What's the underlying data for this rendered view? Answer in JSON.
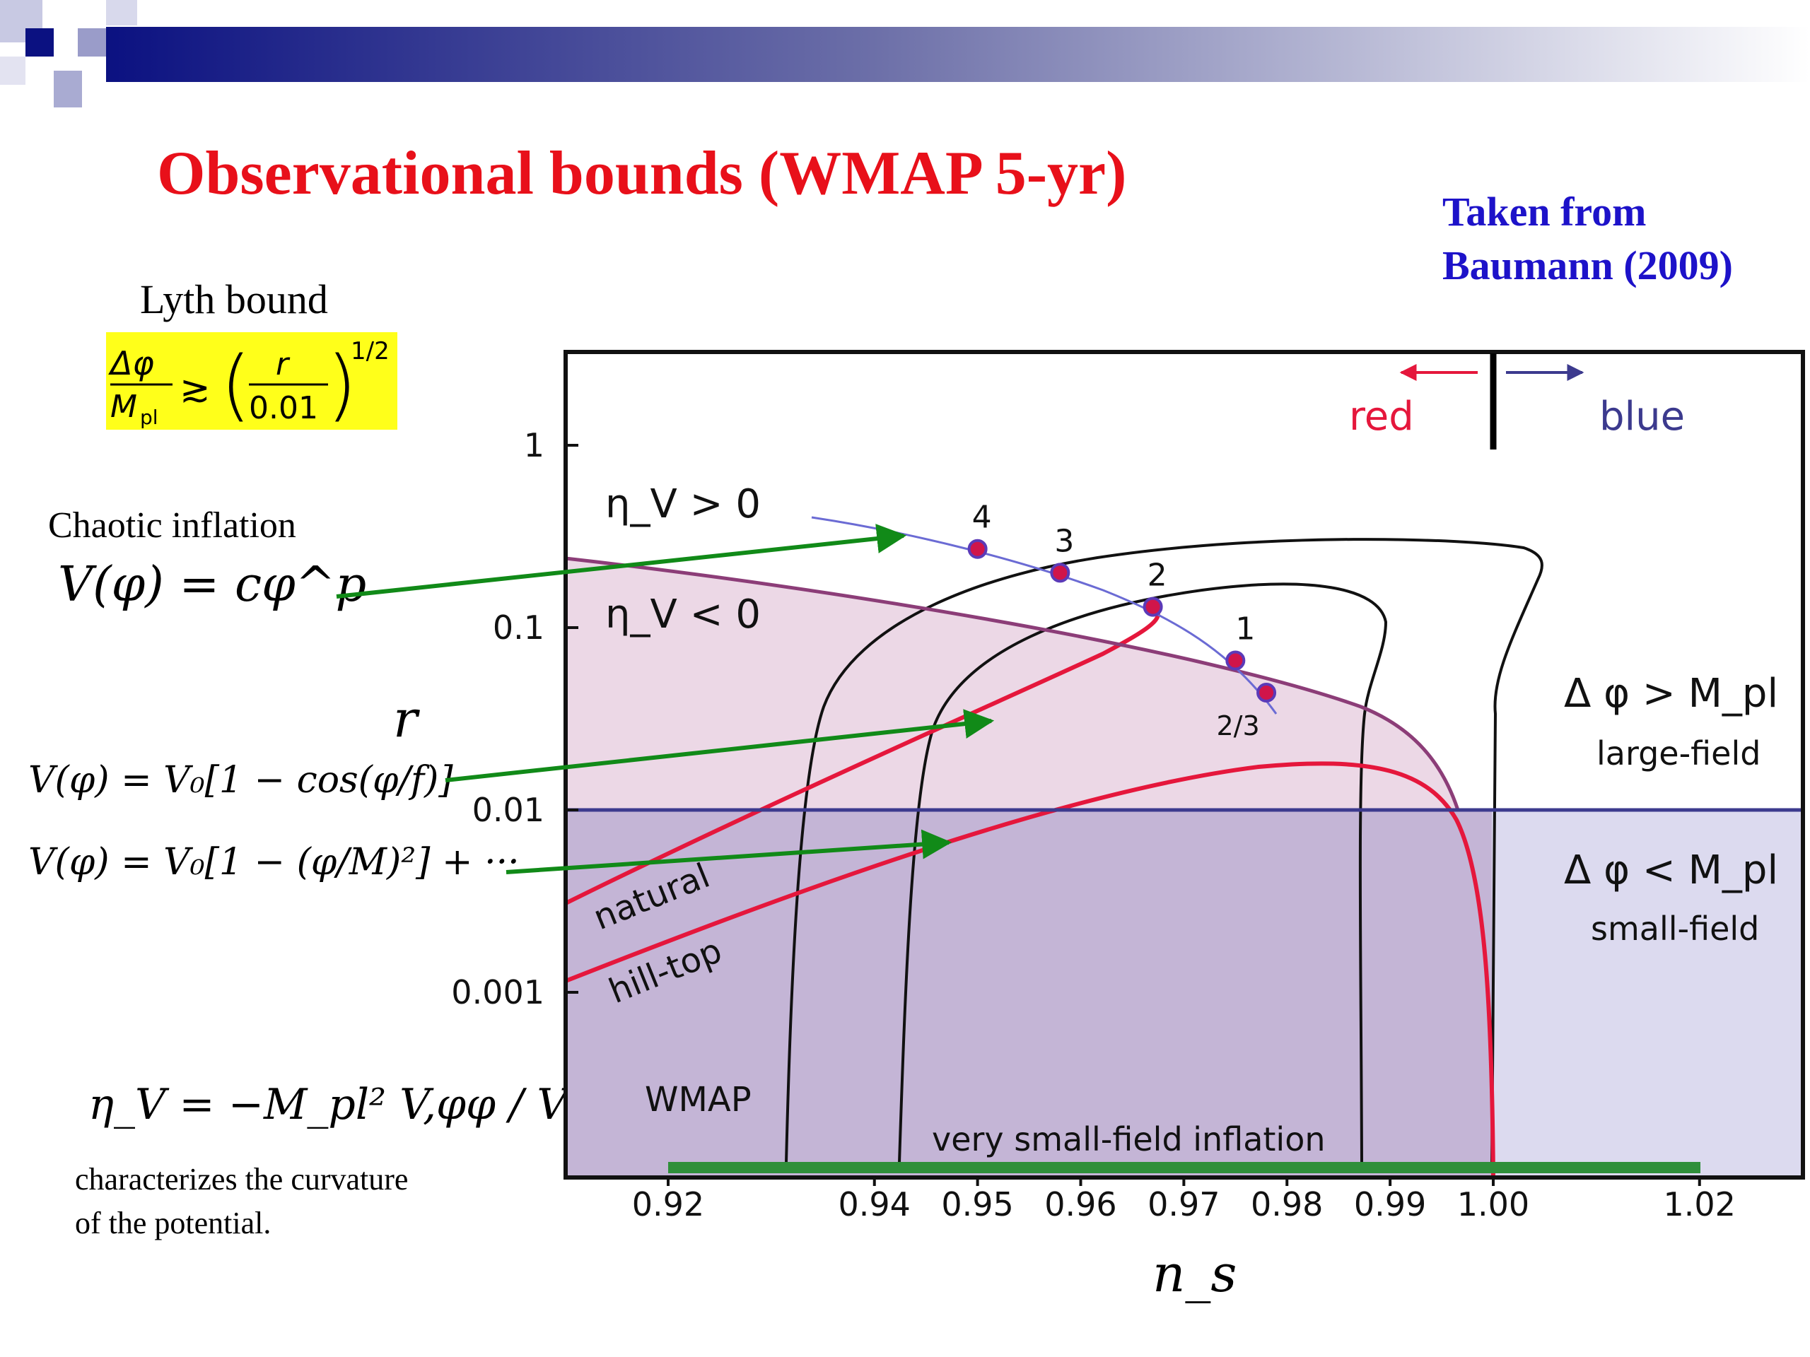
{
  "slide": {
    "title": "Observational bounds (WMAP 5-yr)",
    "credit_line1": "Taken from",
    "credit_line2": "Baumann (2009)",
    "lyth_title": "Lyth bound",
    "lyth_formula": "Δφ/M_pl ≳ (r/0.01)^1/2",
    "chaotic_title": "Chaotic inflation",
    "chaotic_formula": "V(φ) = cφ^p",
    "natural_formula": "V(φ) = V₀[1 − cos(φ/f)]",
    "hilltop_formula": "V(φ) = V₀[1 − (φ/M)²] + ···",
    "eta_formula": "η_V = −M_pl² V,φφ / V",
    "eta_desc_line1": "characterizes the curvature",
    "eta_desc_line2": "of the potential.",
    "colors": {
      "title": "#e8101a",
      "credit": "#1d12c9",
      "highlight": "#ffff1a",
      "arrow": "#118a18"
    }
  },
  "chart_data": {
    "type": "line",
    "xlabel": "n_s",
    "ylabel": "r",
    "x_ticks": [
      "0.92",
      "0.94",
      "0.95",
      "0.96",
      "0.97",
      "0.98",
      "0.99",
      "1.00",
      "1.02"
    ],
    "y_ticks": [
      "1",
      "0.1",
      "0.01",
      "0.001"
    ],
    "yscale": "log",
    "annotations": {
      "red": "red",
      "blue": "blue",
      "eta_pos": "η_V > 0",
      "eta_neg": "η_V < 0",
      "large_field_cond": "Δ φ > M_pl",
      "large_field": "large-field",
      "small_field_cond": "Δ φ < M_pl",
      "small_field": "small-field",
      "natural": "natural",
      "hilltop": "hill-top",
      "wmap": "WMAP",
      "very_small": "very small-field inflation"
    },
    "chaotic_points": [
      {
        "label": "4",
        "ns": 0.95,
        "r": 0.27
      },
      {
        "label": "3",
        "ns": 0.958,
        "r": 0.2
      },
      {
        "label": "2",
        "ns": 0.967,
        "r": 0.13
      },
      {
        "label": "1",
        "ns": 0.975,
        "r": 0.066
      },
      {
        "label": "2/3",
        "ns": 0.978,
        "r": 0.044
      }
    ],
    "large_small_boundary_r": 0.01,
    "colors": {
      "eta_region": "#ecd8e6",
      "small_region": "#c4b5d6",
      "blue_region": "#dcdaef",
      "hilltop_curve": "#e5173c",
      "boundary_line": "#3c3a8e",
      "eta_curve": "#8c3d78",
      "chaotic_line": "#6b6bd4",
      "very_small_bar": "#2f8f3a"
    }
  }
}
